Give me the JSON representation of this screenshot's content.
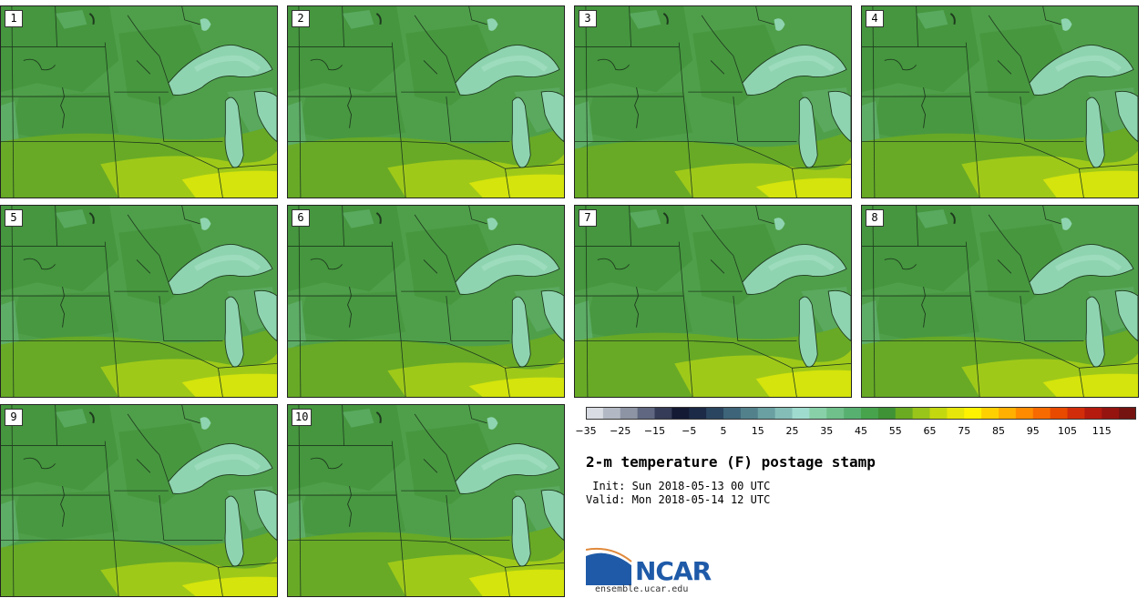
{
  "panels": [
    {
      "label": "1"
    },
    {
      "label": "2"
    },
    {
      "label": "3"
    },
    {
      "label": "4"
    },
    {
      "label": "5"
    },
    {
      "label": "6"
    },
    {
      "label": "7"
    },
    {
      "label": "8"
    },
    {
      "label": "9"
    },
    {
      "label": "10"
    }
  ],
  "colorbar": {
    "tick_labels": [
      "−35",
      "−25",
      "−15",
      "−5",
      "5",
      "15",
      "25",
      "35",
      "45",
      "55",
      "65",
      "75",
      "85",
      "95",
      "105",
      "115"
    ],
    "colors": [
      "#d9dde3",
      "#b3b9c4",
      "#8d94a4",
      "#5f6880",
      "#343c57",
      "#141a33",
      "#1c2a47",
      "#2a4560",
      "#3d6478",
      "#52818c",
      "#6aa0a2",
      "#84bdb8",
      "#9fdccf",
      "#88d0a8",
      "#6fc08a",
      "#58b070",
      "#47a44d",
      "#3f9235",
      "#6aab22",
      "#99c41a",
      "#c4d80f",
      "#e6e60a",
      "#fff200",
      "#ffd000",
      "#ffb000",
      "#ff8c00",
      "#f76a00",
      "#e84a00",
      "#d12d0a",
      "#b51a0e",
      "#951410",
      "#751310"
    ],
    "value_min": -35,
    "step": 5
  },
  "title": "2-m temperature (F) postage stamp",
  "init": " Init: Sun 2018-05-13 00 UTC",
  "valid": "Valid: Mon 2018-05-14 12 UTC",
  "logo": {
    "text": "NCAR",
    "url": "ensemble.ucar.edu"
  },
  "map_colors": {
    "base": "#4f9f4a",
    "dark": "#3e8e34",
    "light": "#62b06e",
    "lake": "#8fd4b0",
    "lake_light": "#a4dfc4",
    "warm_55": "#6aab22",
    "warm_65": "#a5cc18",
    "warm_70": "#d4e40c",
    "border": "#1e3a1e"
  }
}
